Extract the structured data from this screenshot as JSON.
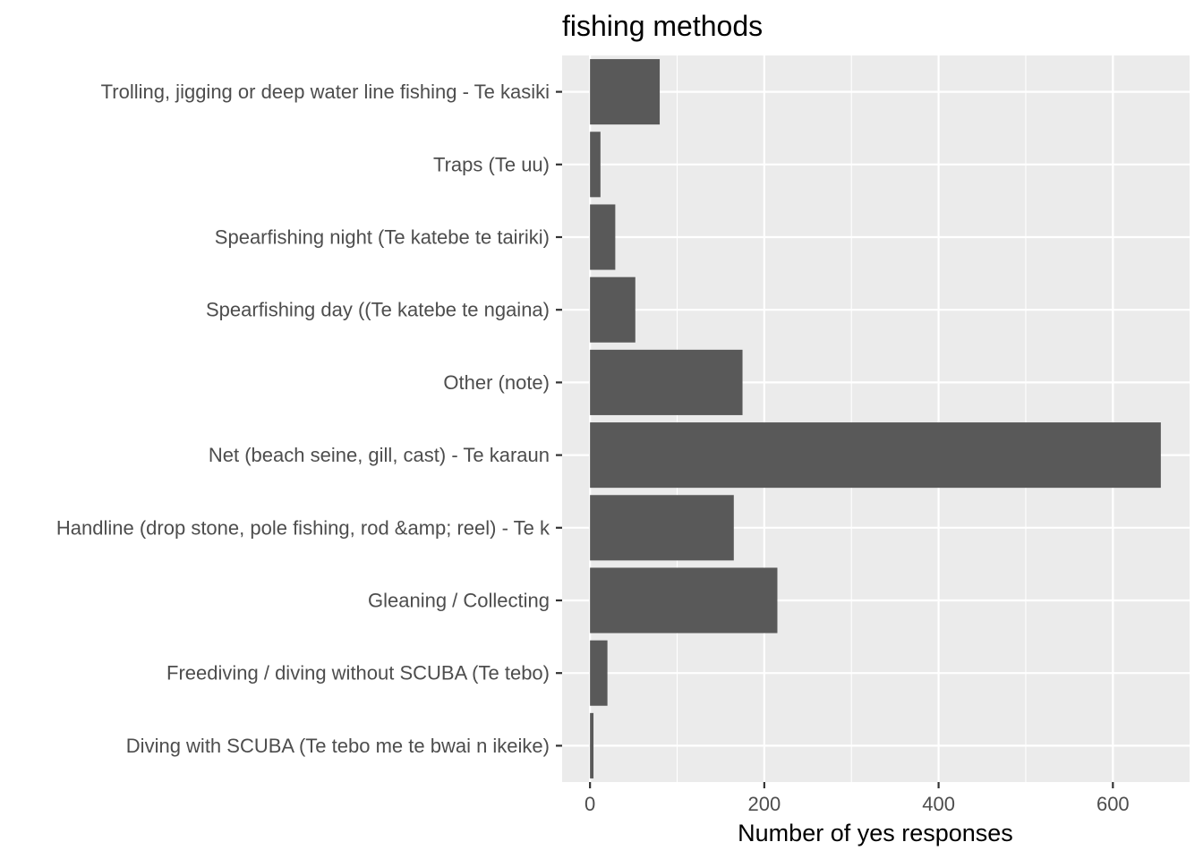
{
  "chart_data": {
    "type": "bar",
    "orientation": "horizontal",
    "title": "fishing methods",
    "xlabel": "Number of yes responses",
    "ylabel": "",
    "xlim": [
      -32,
      688
    ],
    "x_ticks": [
      0,
      200,
      400,
      600
    ],
    "x_tick_labels": [
      "0",
      "200",
      "400",
      "600"
    ],
    "x_minor_ticks": [
      100,
      300,
      500
    ],
    "grid": true,
    "legend": "none",
    "categories": [
      "Diving with SCUBA (Te tebo me te bwai n ikeike)",
      "Freediving / diving without SCUBA (Te tebo)",
      "Gleaning / Collecting",
      "Handline (drop stone, pole fishing, rod &amp; reel) - Te k",
      "Net (beach seine, gill, cast) - Te karaun",
      "Other (note)",
      "Spearfishing day ((Te katebe te ngaina)",
      "Spearfishing night (Te katebe te tairiki)",
      "Traps (Te uu)",
      "Trolling, jigging or deep water line fishing - Te kasiki"
    ],
    "values": [
      4,
      20,
      215,
      165,
      655,
      175,
      52,
      29,
      12,
      80
    ],
    "bar_color": "#595959",
    "panel_color": "#ebebeb"
  }
}
